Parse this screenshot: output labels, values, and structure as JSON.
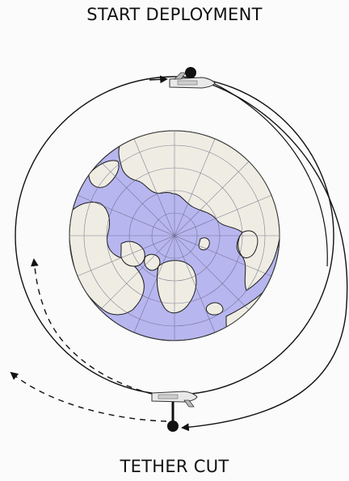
{
  "labels": {
    "top": "START DEPLOYMENT",
    "bottom": "TETHER CUT"
  },
  "colors": {
    "ocean": "#b7b6ef",
    "land": "#efece3",
    "coast": "#1b1b1b",
    "grid": "#5d5d7a",
    "orbit": "#111111",
    "background": "#fbfbfb"
  },
  "icons": {
    "earth": "earth-north-pole-globe-icon",
    "shuttle": "space-shuttle-icon",
    "payload": "tethered-payload-dot-icon"
  }
}
